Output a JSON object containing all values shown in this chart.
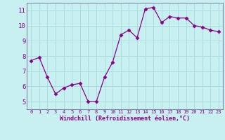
{
  "x": [
    0,
    1,
    2,
    3,
    4,
    5,
    6,
    7,
    8,
    9,
    10,
    11,
    12,
    13,
    14,
    15,
    16,
    17,
    18,
    19,
    20,
    21,
    22,
    23
  ],
  "y": [
    7.7,
    7.9,
    6.6,
    5.5,
    5.9,
    6.1,
    6.2,
    5.0,
    5.0,
    6.6,
    7.6,
    9.4,
    9.7,
    9.2,
    11.1,
    11.2,
    10.2,
    10.6,
    10.5,
    10.5,
    10.0,
    9.9,
    9.7,
    9.6
  ],
  "line_color": "#880088",
  "marker": "D",
  "marker_size": 2.5,
  "bg_color": "#c8f0f0",
  "grid_color": "#aadddd",
  "xlabel": "Windchill (Refroidissement éolien,°C)",
  "xlabel_color": "#880088",
  "tick_color": "#880088",
  "spine_color": "#8888aa",
  "ylim": [
    4.5,
    11.5
  ],
  "yticks": [
    5,
    6,
    7,
    8,
    9,
    10,
    11
  ],
  "xticks": [
    0,
    1,
    2,
    3,
    4,
    5,
    6,
    7,
    8,
    9,
    10,
    11,
    12,
    13,
    14,
    15,
    16,
    17,
    18,
    19,
    20,
    21,
    22,
    23
  ],
  "figwidth": 3.2,
  "figheight": 2.0,
  "dpi": 100
}
